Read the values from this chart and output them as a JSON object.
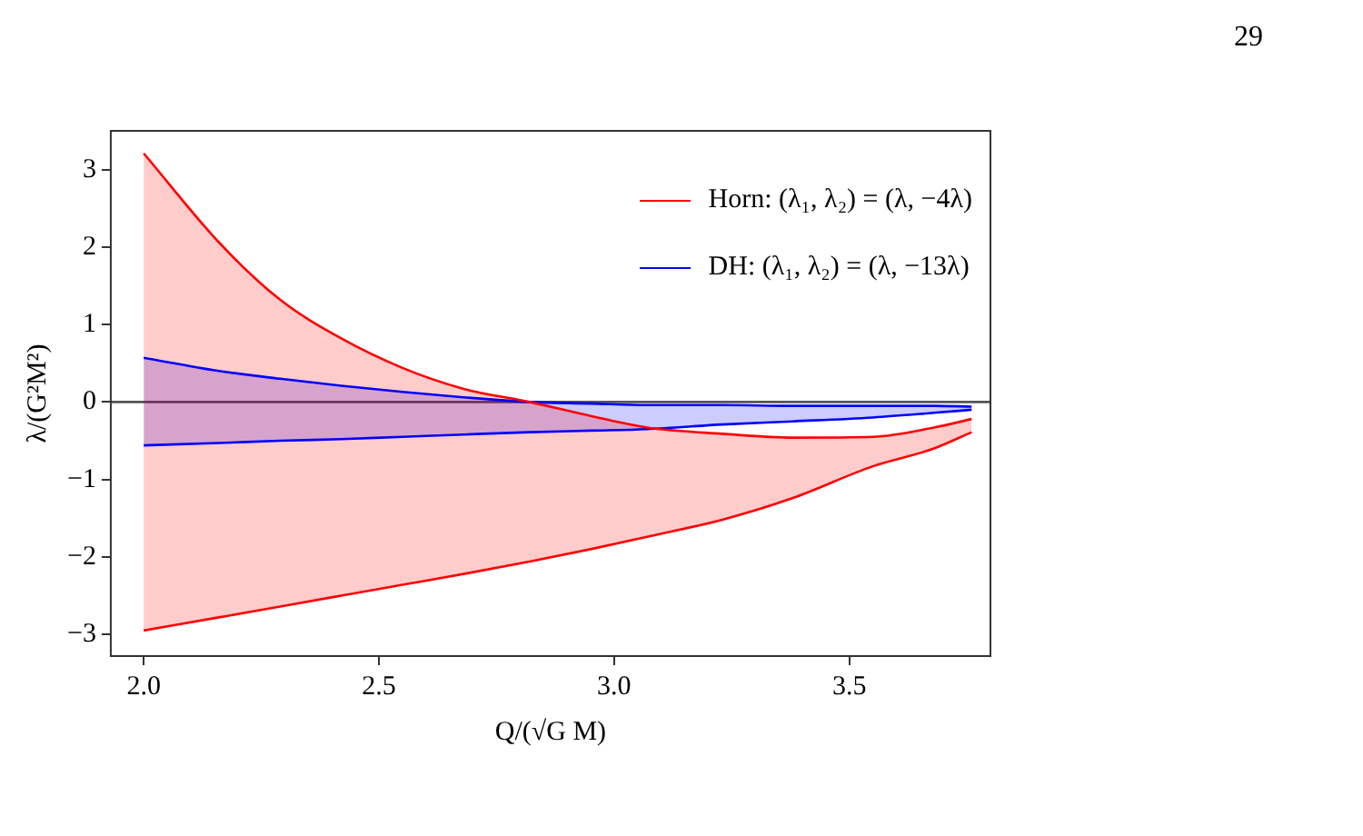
{
  "chart_data": {
    "type": "line",
    "xlabel": "Q/(√G M)",
    "ylabel": "λ/(G²M²)",
    "x": [
      2.0,
      2.16,
      2.29,
      2.42,
      2.55,
      2.68,
      2.82,
      2.95,
      3.07,
      3.23,
      3.38,
      3.55,
      3.68,
      3.76
    ],
    "series": [
      {
        "name": "Horn: (λ₁, λ₂) = (λ, −4λ)",
        "color": "#ff0000",
        "values": [
          3.21,
          2.06,
          1.32,
          0.82,
          0.44,
          0.17,
          0.0,
          -0.18,
          -0.33,
          -0.41,
          -0.46,
          -0.45,
          -0.33,
          -0.22
        ],
        "lower": [
          -2.95,
          -2.78,
          -2.64,
          -2.5,
          -2.36,
          -2.22,
          -2.06,
          -1.9,
          -1.74,
          -1.52,
          -1.24,
          -0.83,
          -0.6,
          -0.39
        ],
        "upper": [
          3.21,
          2.06,
          1.32,
          0.82,
          0.44,
          0.17,
          0.0,
          -0.18,
          -0.33,
          -0.41,
          -0.46,
          -0.45,
          -0.33,
          -0.22
        ]
      },
      {
        "color": "#ff0000",
        "values": [
          -2.95,
          -2.78,
          -2.64,
          -2.5,
          -2.36,
          -2.22,
          -2.06,
          -1.9,
          -1.74,
          -1.52,
          -1.24,
          -0.83,
          -0.6,
          -0.39
        ]
      },
      {
        "name": "DH: (λ₁, λ₂) = (λ, −13λ)",
        "color": "#0000ff",
        "values": [
          0.57,
          0.4,
          0.3,
          0.21,
          0.13,
          0.06,
          0.0,
          -0.02,
          -0.04,
          -0.04,
          -0.05,
          -0.05,
          -0.05,
          -0.06
        ],
        "lower": [
          -0.56,
          -0.53,
          -0.5,
          -0.48,
          -0.45,
          -0.42,
          -0.39,
          -0.37,
          -0.35,
          -0.29,
          -0.25,
          -0.2,
          -0.14,
          -0.1
        ],
        "upper": [
          0.57,
          0.4,
          0.3,
          0.21,
          0.13,
          0.06,
          0.0,
          -0.02,
          -0.04,
          -0.04,
          -0.05,
          -0.05,
          -0.05,
          -0.06
        ]
      },
      {
        "color": "#0000ff",
        "values": [
          -0.56,
          -0.53,
          -0.5,
          -0.48,
          -0.45,
          -0.42,
          -0.39,
          -0.37,
          -0.35,
          -0.29,
          -0.25,
          -0.2,
          -0.14,
          -0.1
        ]
      }
    ],
    "xlim": [
      1.93,
      3.8
    ],
    "xticks": [
      {
        "value": 2,
        "label": "2.0"
      },
      {
        "value": 2.5,
        "label": "2.5"
      },
      {
        "value": 3,
        "label": "3.0"
      },
      {
        "value": 3.5,
        "label": "3.5"
      }
    ],
    "ylim": [
      -3.28,
      3.5
    ],
    "yticks": [
      {
        "value": -3,
        "label": "−3"
      },
      {
        "value": -2,
        "label": "−2"
      },
      {
        "value": -1,
        "label": "−1"
      },
      0,
      1,
      2,
      3
    ],
    "ref_lines": [
      {
        "axis": "y",
        "value": 0,
        "color": "#555555"
      }
    ],
    "legend": "top right",
    "grid": false,
    "marker": "none",
    "line_style": "solid",
    "annotations": [
      "29"
    ]
  }
}
